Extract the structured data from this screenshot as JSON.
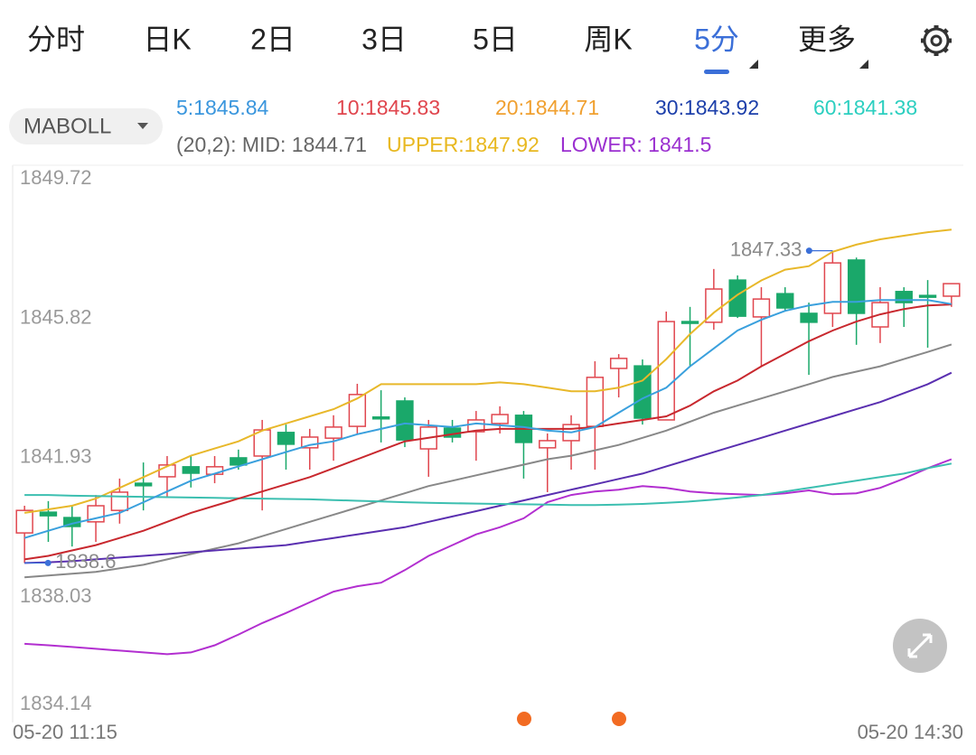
{
  "toolbar": {
    "tabs": [
      "分时",
      "日K",
      "2日",
      "3日",
      "5日",
      "周K",
      "5分",
      "更多"
    ],
    "active": 6,
    "active_color": "#3b6fd8"
  },
  "indicator": {
    "name": "MABOLL",
    "ma": [
      {
        "label": "5:1845.84",
        "color": "#3a96dd"
      },
      {
        "label": "10:1845.83",
        "color": "#e0464e"
      },
      {
        "label": "20:1844.71",
        "color": "#f0a030"
      },
      {
        "label": "30:1843.92",
        "color": "#1c3faa"
      },
      {
        "label": "60:1841.38",
        "color": "#2ccfc0"
      }
    ],
    "boll": [
      {
        "label": "(20,2): MID: 1844.71",
        "color": "#666666"
      },
      {
        "label": "UPPER:1847.92",
        "color": "#e8b820"
      },
      {
        "label": "LOWER: 1841.5",
        "color": "#9b30d0"
      }
    ]
  },
  "chart_data": {
    "type": "candlestick",
    "categories": [
      "05-20 11:15",
      null,
      null,
      null,
      null,
      null,
      null,
      null,
      null,
      null,
      null,
      null,
      null,
      null,
      null,
      null,
      null,
      null,
      null,
      null,
      null,
      null,
      null,
      null,
      null,
      null,
      null,
      null,
      null,
      null,
      null,
      null,
      null,
      null,
      null,
      null,
      null,
      null,
      null,
      "05-20 14:30"
    ],
    "open": [
      1839.44,
      1840.02,
      1839.87,
      1839.75,
      1840.07,
      1840.83,
      1841.01,
      1841.29,
      1841.08,
      1841.54,
      1841.59,
      1842.25,
      1841.82,
      1842.09,
      1842.42,
      1842.68,
      1843.13,
      1841.79,
      1842.37,
      1842.27,
      1842.5,
      1842.73,
      1841.82,
      1842.02,
      1842.42,
      1844.04,
      1844.11,
      1842.6,
      1845.35,
      1845.33,
      1846.51,
      1845.48,
      1846.13,
      1845.58,
      1845.58,
      1847.07,
      1845.2,
      1846.19,
      1846.08,
      1846.06
    ],
    "high": [
      1840.2,
      1840.33,
      1840.2,
      1840.5,
      1840.96,
      1841.41,
      1841.59,
      1841.59,
      1841.59,
      1841.77,
      1842.6,
      1842.47,
      1842.35,
      1842.73,
      1843.61,
      1843.43,
      1843.23,
      1842.6,
      1842.6,
      1842.85,
      1842.98,
      1842.85,
      1842.22,
      1842.73,
      1844.24,
      1844.44,
      1844.29,
      1845.63,
      1845.76,
      1846.82,
      1846.64,
      1846.31,
      1846.31,
      1845.88,
      1847.33,
      1847.14,
      1846.31,
      1846.31,
      1846.51,
      1846.41
    ],
    "low": [
      1838.6,
      1839.19,
      1839.06,
      1839.19,
      1839.7,
      1840.07,
      1840.45,
      1840.71,
      1840.83,
      1841.21,
      1840.07,
      1841.21,
      1841.21,
      1841.46,
      1842.22,
      1841.97,
      1841.84,
      1841.01,
      1841.97,
      1841.46,
      1842.22,
      1840.96,
      1840.58,
      1841.21,
      1841.21,
      1843.23,
      1842.47,
      1842.6,
      1844.11,
      1845.12,
      1845.45,
      1844.11,
      1845.63,
      1843.86,
      1845.2,
      1844.7,
      1844.75,
      1845.2,
      1844.62,
      1845.76
    ],
    "close": [
      1840.07,
      1839.92,
      1839.62,
      1840.2,
      1840.58,
      1840.76,
      1841.34,
      1841.11,
      1841.29,
      1841.34,
      1842.32,
      1841.92,
      1842.12,
      1842.4,
      1843.31,
      1842.63,
      1842.04,
      1842.4,
      1842.12,
      1842.6,
      1842.75,
      1841.97,
      1842.02,
      1842.47,
      1843.79,
      1844.32,
      1842.65,
      1845.35,
      1845.3,
      1846.26,
      1845.5,
      1845.98,
      1845.73,
      1845.33,
      1846.99,
      1845.58,
      1845.88,
      1845.88,
      1846.03,
      1846.41
    ],
    "up_color": "#e0464e",
    "down_color": "#1aa86a",
    "overlays": [
      {
        "color": "#e8b82a",
        "values": [
          1840.0,
          1840.1,
          1840.2,
          1840.4,
          1840.7,
          1841.0,
          1841.3,
          1841.6,
          1841.8,
          1842.0,
          1842.3,
          1842.5,
          1842.7,
          1842.9,
          1843.2,
          1843.6,
          1843.6,
          1843.6,
          1843.6,
          1843.6,
          1843.65,
          1843.6,
          1843.5,
          1843.4,
          1843.4,
          1843.5,
          1843.7,
          1844.3,
          1845.0,
          1845.6,
          1846.1,
          1846.5,
          1846.8,
          1846.9,
          1847.3,
          1847.5,
          1847.65,
          1847.75,
          1847.85,
          1847.92
        ]
      },
      {
        "color": "#888888",
        "values": [
          1838.2,
          1838.25,
          1838.3,
          1838.35,
          1838.45,
          1838.55,
          1838.7,
          1838.85,
          1839.0,
          1839.15,
          1839.35,
          1839.55,
          1839.75,
          1839.95,
          1840.15,
          1840.35,
          1840.55,
          1840.75,
          1840.9,
          1841.05,
          1841.2,
          1841.35,
          1841.5,
          1841.6,
          1841.75,
          1841.9,
          1842.1,
          1842.3,
          1842.55,
          1842.8,
          1843.0,
          1843.2,
          1843.4,
          1843.6,
          1843.8,
          1843.95,
          1844.1,
          1844.3,
          1844.5,
          1844.71
        ]
      },
      {
        "color": "#b22fd0",
        "values": [
          1836.34,
          1836.3,
          1836.25,
          1836.2,
          1836.15,
          1836.1,
          1836.05,
          1836.1,
          1836.3,
          1836.6,
          1836.92,
          1837.2,
          1837.5,
          1837.8,
          1837.95,
          1838.05,
          1838.4,
          1838.8,
          1839.1,
          1839.4,
          1839.6,
          1839.85,
          1840.3,
          1840.5,
          1840.6,
          1840.65,
          1840.75,
          1840.7,
          1840.6,
          1840.55,
          1840.52,
          1840.5,
          1840.55,
          1840.63,
          1840.52,
          1840.55,
          1840.7,
          1840.96,
          1841.25,
          1841.5
        ]
      },
      {
        "color": "#5a2fb0",
        "values": [
          1838.6,
          1838.62,
          1838.65,
          1838.7,
          1838.75,
          1838.8,
          1838.85,
          1838.9,
          1838.95,
          1839.0,
          1839.05,
          1839.1,
          1839.2,
          1839.3,
          1839.4,
          1839.5,
          1839.6,
          1839.75,
          1839.9,
          1840.05,
          1840.2,
          1840.35,
          1840.5,
          1840.65,
          1840.8,
          1840.95,
          1841.1,
          1841.3,
          1841.5,
          1841.7,
          1841.9,
          1842.1,
          1842.3,
          1842.5,
          1842.7,
          1842.9,
          1843.1,
          1843.35,
          1843.6,
          1843.92
        ]
      },
      {
        "color": "#3cbfb0",
        "values": [
          1840.5,
          1840.5,
          1840.48,
          1840.47,
          1840.46,
          1840.45,
          1840.44,
          1840.43,
          1840.42,
          1840.41,
          1840.4,
          1840.39,
          1840.38,
          1840.36,
          1840.34,
          1840.32,
          1840.3,
          1840.28,
          1840.27,
          1840.26,
          1840.25,
          1840.24,
          1840.23,
          1840.22,
          1840.22,
          1840.23,
          1840.25,
          1840.28,
          1840.32,
          1840.37,
          1840.43,
          1840.5,
          1840.6,
          1840.7,
          1840.8,
          1840.9,
          1841.0,
          1841.1,
          1841.25,
          1841.38
        ]
      },
      {
        "color": "#c8282e",
        "values": [
          1838.7,
          1838.8,
          1838.95,
          1839.1,
          1839.3,
          1839.5,
          1839.75,
          1840.0,
          1840.2,
          1840.4,
          1840.6,
          1840.8,
          1841.0,
          1841.25,
          1841.5,
          1841.75,
          1842.0,
          1842.1,
          1842.2,
          1842.3,
          1842.35,
          1842.35,
          1842.35,
          1842.35,
          1842.4,
          1842.5,
          1842.6,
          1842.7,
          1843.0,
          1843.4,
          1843.7,
          1844.1,
          1844.45,
          1844.8,
          1845.1,
          1845.35,
          1845.55,
          1845.7,
          1845.8,
          1845.83
        ]
      },
      {
        "color": "#3aa0dd",
        "values": [
          1839.3,
          1839.5,
          1839.7,
          1839.85,
          1840.0,
          1840.3,
          1840.6,
          1840.9,
          1841.1,
          1841.3,
          1841.5,
          1841.7,
          1841.9,
          1842.0,
          1842.2,
          1842.35,
          1842.5,
          1842.45,
          1842.4,
          1842.5,
          1842.45,
          1842.4,
          1842.3,
          1842.25,
          1842.4,
          1842.8,
          1843.2,
          1843.5,
          1844.1,
          1844.6,
          1845.1,
          1845.4,
          1845.65,
          1845.8,
          1845.9,
          1845.9,
          1845.95,
          1845.95,
          1845.95,
          1845.84
        ]
      }
    ],
    "ylim": [
      1834.14,
      1849.72
    ],
    "yticks": [
      1849.72,
      1845.82,
      1841.93,
      1838.03,
      1834.14
    ],
    "grid": false,
    "marker_color": "#3b6fd8"
  }
}
